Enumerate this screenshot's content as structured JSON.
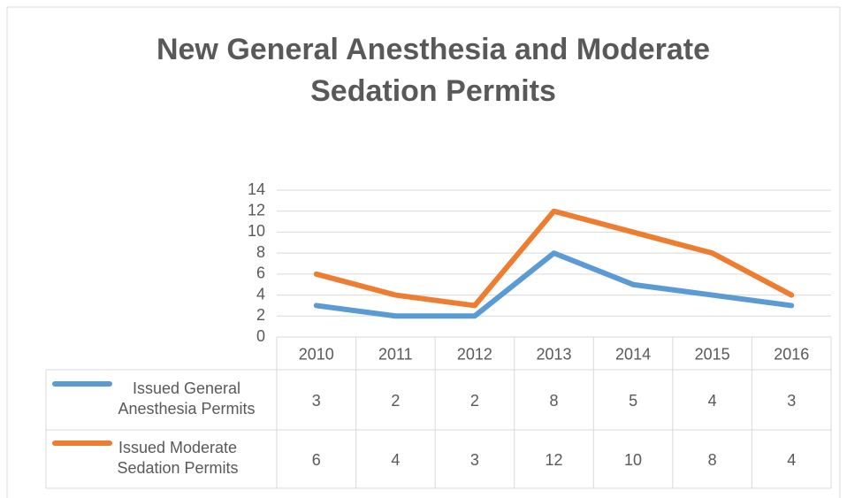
{
  "chart_data": {
    "type": "line",
    "title": "New General Anesthesia and Moderate Sedation Permits",
    "categories": [
      "2010",
      "2011",
      "2012",
      "2013",
      "2014",
      "2015",
      "2016"
    ],
    "series": [
      {
        "name": "Issued General Anesthesia Permits",
        "color": "#5b9bd5",
        "values": [
          3,
          2,
          2,
          8,
          5,
          4,
          3
        ]
      },
      {
        "name": "Issued Moderate Sedation Permits",
        "color": "#ed7d31",
        "values": [
          6,
          4,
          3,
          12,
          10,
          8,
          4
        ]
      }
    ],
    "ylim": [
      0,
      14
    ],
    "yticks": [
      0,
      2,
      4,
      6,
      8,
      10,
      12,
      14
    ],
    "grid": true,
    "data_table": true
  }
}
